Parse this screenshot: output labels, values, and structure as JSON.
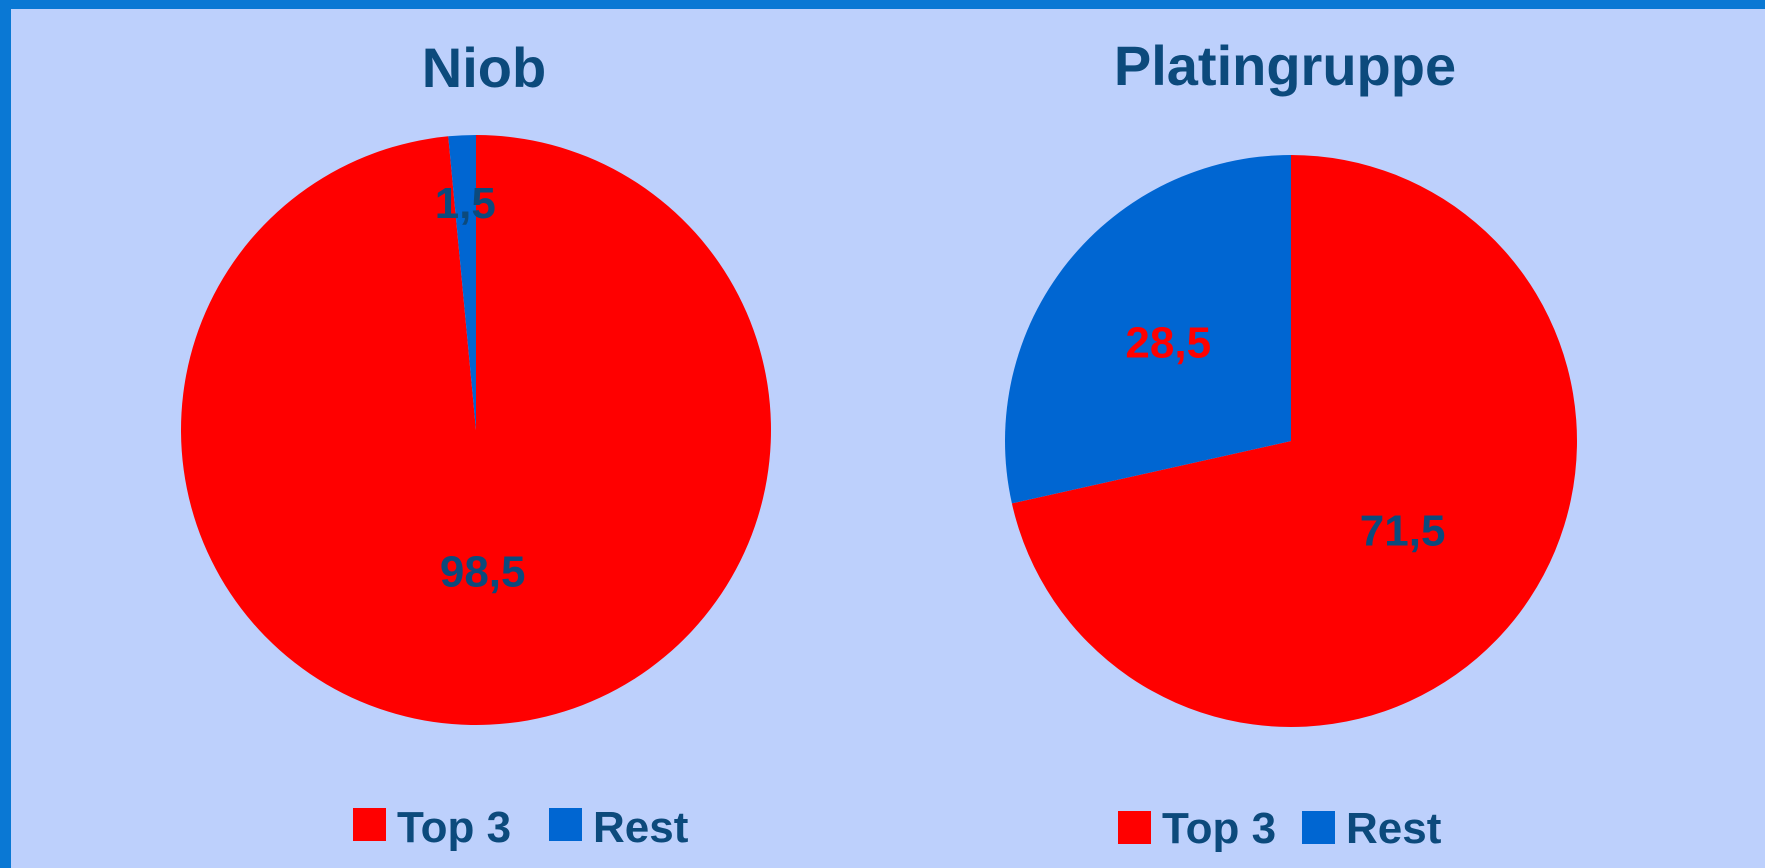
{
  "chart_data": [
    {
      "type": "pie",
      "title": "Niob",
      "categories": [
        "Top 3",
        "Rest"
      ],
      "values": [
        98.5,
        1.5
      ],
      "data_labels": [
        "98,5",
        "1,5"
      ],
      "colors": [
        "#ff0000",
        "#0066d2"
      ],
      "label_colors": [
        "#0c4a7c",
        "#0c4a7c"
      ],
      "legend": {
        "position": "bottom",
        "entries": [
          "Top 3",
          "Rest"
        ]
      }
    },
    {
      "type": "pie",
      "title": "Platingruppe",
      "categories": [
        "Top 3",
        "Rest"
      ],
      "values": [
        71.5,
        28.5
      ],
      "data_labels": [
        "71,5",
        "28,5"
      ],
      "colors": [
        "#ff0000",
        "#0066d2"
      ],
      "label_colors": [
        "#0c4a7c",
        "#ff0000"
      ],
      "legend": {
        "position": "bottom",
        "entries": [
          "Top 3",
          "Rest"
        ]
      }
    }
  ]
}
